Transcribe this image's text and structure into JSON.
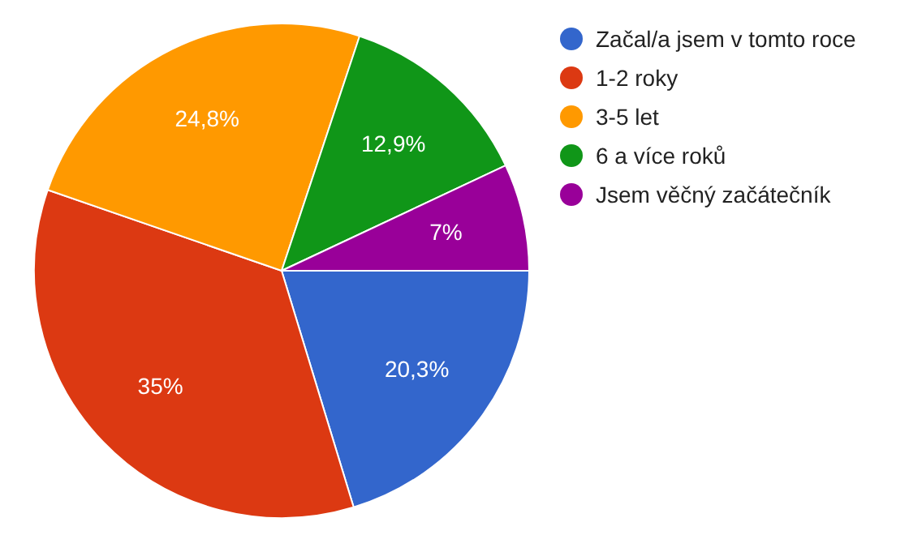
{
  "chart_data": {
    "type": "pie",
    "categories": [
      "Začal/a jsem v tomto roce",
      "1-2 roky",
      "3-5 let",
      "6 a více roků",
      "Jsem věčný začátečník"
    ],
    "values": [
      20.3,
      35,
      24.8,
      12.9,
      7
    ],
    "colors": [
      "#3366cc",
      "#dc3912",
      "#ff9900",
      "#109618",
      "#990099"
    ],
    "value_labels": [
      "20,3%",
      "35%",
      "24,8%",
      "12,9%",
      "7%"
    ],
    "legend": "right"
  }
}
